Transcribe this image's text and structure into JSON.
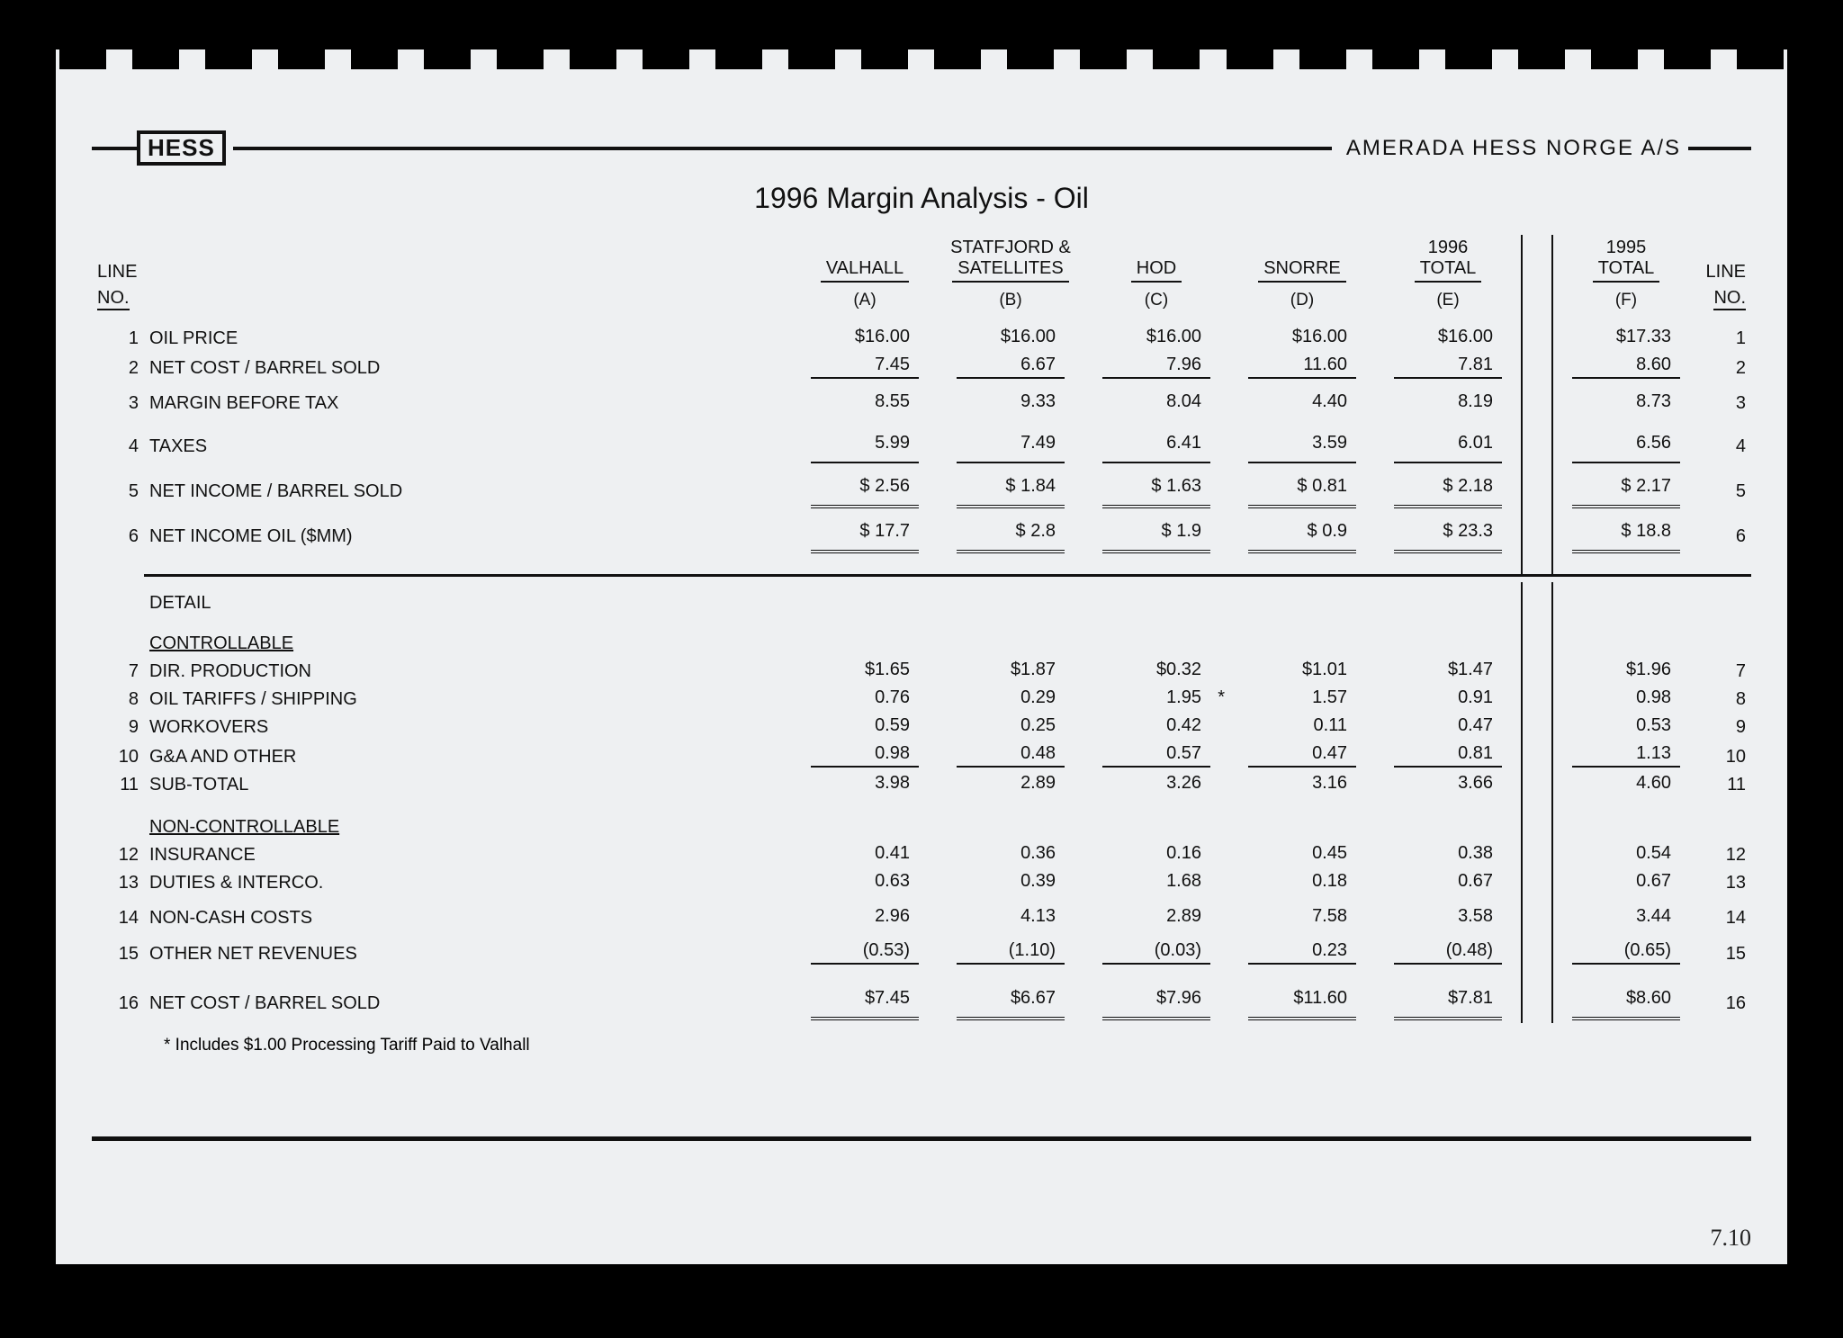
{
  "logo": "HESS",
  "company": "AMERADA HESS NORGE A/S",
  "title": "1996 Margin Analysis - Oil",
  "headers": {
    "line_no": "LINE\nNO.",
    "cols": [
      {
        "name": "VALHALL",
        "sub": "(A)"
      },
      {
        "name": "STATFJORD &\nSATELLITES",
        "sub": "(B)"
      },
      {
        "name": "HOD",
        "sub": "(C)"
      },
      {
        "name": "SNORRE",
        "sub": "(D)"
      },
      {
        "name": "1996\nTOTAL",
        "sub": "(E)"
      },
      {
        "name": "1995\nTOTAL",
        "sub": "(F)"
      }
    ]
  },
  "rows_top": [
    {
      "n": "1",
      "label": "OIL PRICE",
      "vals": [
        "$16.00",
        "$16.00",
        "$16.00",
        "$16.00",
        "$16.00",
        "$17.33"
      ],
      "style": "plain"
    },
    {
      "n": "2",
      "label": "NET COST / BARREL SOLD",
      "vals": [
        "7.45",
        "6.67",
        "7.96",
        "11.60",
        "7.81",
        "8.60"
      ],
      "style": "u1"
    },
    {
      "n": "3",
      "label": "MARGIN BEFORE TAX",
      "vals": [
        "8.55",
        "9.33",
        "8.04",
        "4.40",
        "8.19",
        "8.73"
      ],
      "style": "plain",
      "pad": true
    },
    {
      "n": "4",
      "label": "TAXES",
      "vals": [
        "5.99",
        "7.49",
        "6.41",
        "3.59",
        "6.01",
        "6.56"
      ],
      "style": "u1",
      "pad": true
    },
    {
      "n": "5",
      "label": "NET INCOME / BARREL SOLD",
      "vals": [
        "$  2.56",
        "$  1.84",
        "$  1.63",
        "$  0.81",
        "$  2.18",
        "$  2.17"
      ],
      "style": "u2",
      "pad": true
    },
    {
      "n": "6",
      "label": "NET INCOME OIL ($MM)",
      "vals": [
        "$   17.7",
        "$    2.8",
        "$    1.9",
        "$    0.9",
        "$  23.3",
        "$   18.8"
      ],
      "style": "u2",
      "pad": true
    }
  ],
  "detail_label": "DETAIL",
  "controllable_label": "CONTROLLABLE",
  "rows_ctrl": [
    {
      "n": "7",
      "label": "DIR. PRODUCTION",
      "vals": [
        "$1.65",
        "$1.87",
        "$0.32",
        "$1.01",
        "$1.47",
        "$1.96"
      ],
      "style": "plain",
      "indent": true
    },
    {
      "n": "8",
      "label": "OIL TARIFFS / SHIPPING",
      "vals": [
        "0.76",
        "0.29",
        "1.95",
        "1.57",
        "0.91",
        "0.98"
      ],
      "style": "plain",
      "indent": true,
      "star_col": 2
    },
    {
      "n": "9",
      "label": "WORKOVERS",
      "vals": [
        "0.59",
        "0.25",
        "0.42",
        "0.11",
        "0.47",
        "0.53"
      ],
      "style": "plain",
      "indent": true
    },
    {
      "n": "10",
      "label": "G&A AND OTHER",
      "vals": [
        "0.98",
        "0.48",
        "0.57",
        "0.47",
        "0.81",
        "1.13"
      ],
      "style": "u1",
      "indent": true
    },
    {
      "n": "11",
      "label": "SUB-TOTAL",
      "vals": [
        "3.98",
        "2.89",
        "3.26",
        "3.16",
        "3.66",
        "4.60"
      ],
      "style": "plain"
    }
  ],
  "noncontrollable_label": "NON-CONTROLLABLE",
  "rows_nctrl": [
    {
      "n": "12",
      "label": "INSURANCE",
      "vals": [
        "0.41",
        "0.36",
        "0.16",
        "0.45",
        "0.38",
        "0.54"
      ],
      "style": "plain",
      "indent": true
    },
    {
      "n": "13",
      "label": "DUTIES & INTERCO.",
      "vals": [
        "0.63",
        "0.39",
        "1.68",
        "0.18",
        "0.67",
        "0.67"
      ],
      "style": "plain",
      "indent": true
    },
    {
      "n": "14",
      "label": "NON-CASH COSTS",
      "vals": [
        "2.96",
        "4.13",
        "2.89",
        "7.58",
        "3.58",
        "3.44"
      ],
      "style": "plain",
      "indent": true,
      "pad": true
    },
    {
      "n": "15",
      "label": "OTHER NET REVENUES",
      "vals": [
        "(0.53)",
        "(1.10)",
        "(0.03)",
        "0.23",
        "(0.48)",
        "(0.65)"
      ],
      "style": "u1",
      "indent": true
    }
  ],
  "row_total": {
    "n": "16",
    "label": "NET COST / BARREL SOLD",
    "vals": [
      "$7.45",
      "$6.67",
      "$7.96",
      "$11.60",
      "$7.81",
      "$8.60"
    ],
    "style": "u2",
    "pad": true
  },
  "footnote": "* Includes $1.00 Processing Tariff Paid to Valhall",
  "pagenum": "7.10"
}
